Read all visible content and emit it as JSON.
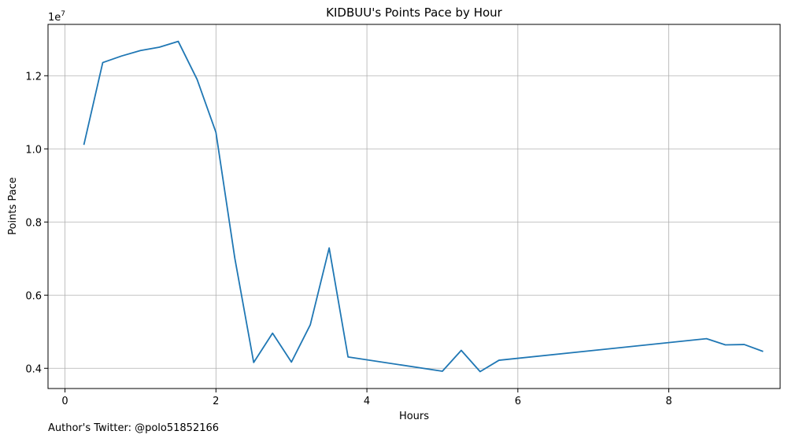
{
  "chart_data": {
    "type": "line",
    "title": "KIDBUU's Points Pace by Hour",
    "xlabel": "Hours",
    "ylabel": "Points Pace",
    "y_offset_label": "1e7",
    "xlim": [
      -0.225,
      9.475
    ],
    "ylim": [
      0.3447,
      1.3404
    ],
    "x_ticks": [
      0,
      2,
      4,
      6,
      8
    ],
    "x_tick_labels": [
      "0",
      "2",
      "4",
      "6",
      "8"
    ],
    "y_ticks": [
      0.4,
      0.6,
      0.8,
      1.0,
      1.2
    ],
    "y_tick_labels": [
      "0.4",
      "0.6",
      "0.8",
      "1.0",
      "1.2"
    ],
    "grid": true,
    "series": [
      {
        "color": "#1f77b4",
        "x": [
          0.25,
          0.5,
          0.75,
          1.0,
          1.25,
          1.5,
          1.75,
          2.0,
          2.25,
          2.5,
          2.75,
          3.0,
          3.25,
          3.5,
          3.75,
          5.0,
          5.25,
          5.5,
          5.75,
          8.5,
          8.75,
          9.0,
          9.25
        ],
        "y": [
          1.011,
          1.236,
          1.254,
          1.269,
          1.278,
          1.294,
          1.19,
          1.045,
          0.701,
          0.416,
          0.496,
          0.417,
          0.519,
          0.729,
          0.431,
          0.392,
          0.449,
          0.391,
          0.422,
          0.481,
          0.464,
          0.465,
          0.446
        ]
      }
    ]
  },
  "footer": {
    "text": "Author's Twitter: @polo51852166"
  }
}
